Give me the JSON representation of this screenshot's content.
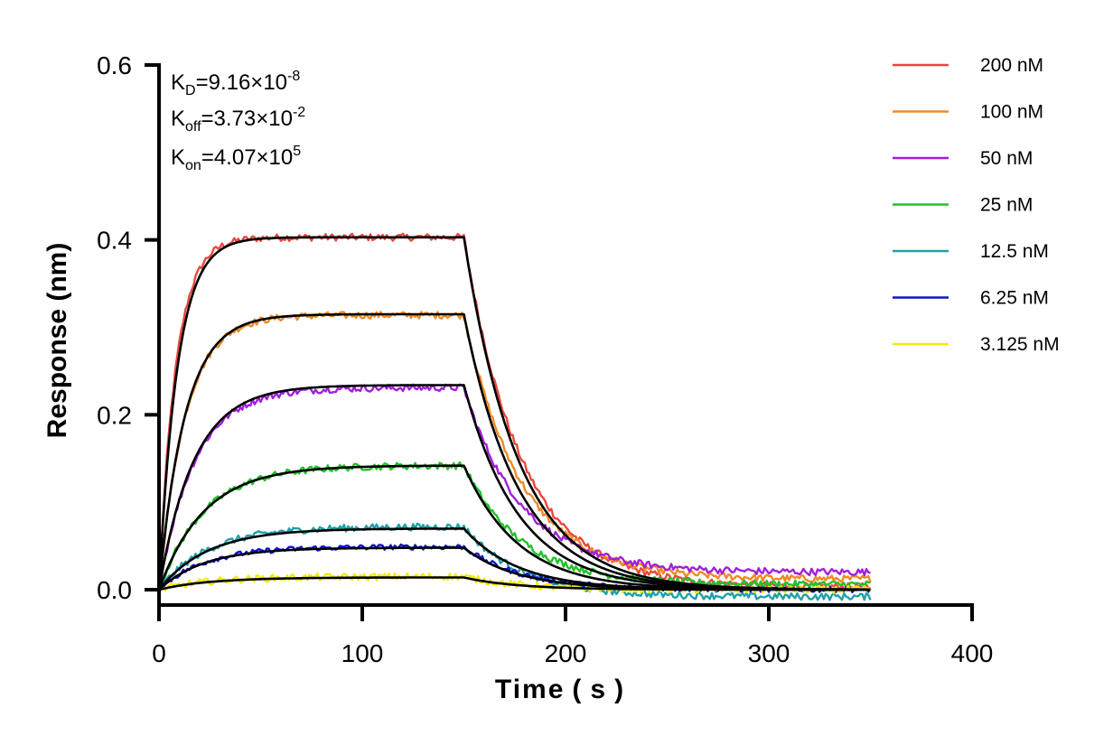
{
  "chart_data": {
    "type": "line",
    "title": "",
    "xlabel": "Time ( s )",
    "ylabel": "Response (nm)",
    "xlim": [
      0,
      400
    ],
    "ylim": [
      0,
      0.6
    ],
    "x_ticks": [
      "0",
      "100",
      "200",
      "300",
      "400"
    ],
    "y_ticks": [
      "0.0",
      "0.2",
      "0.4",
      "0.6"
    ],
    "x_tick_values": [
      0,
      100,
      200,
      300,
      400
    ],
    "y_tick_values": [
      0,
      0.2,
      0.4,
      0.6
    ],
    "grid": false,
    "legend_position": "top-right",
    "association_end_s": 150,
    "dissociation_end_s": 350,
    "annotations": {
      "kd": {
        "label": "K",
        "sub": "D",
        "value": "=9.16×10",
        "exp": "-8"
      },
      "koff": {
        "label": "K",
        "sub": "off",
        "value": "=3.73×10",
        "exp": "-2"
      },
      "kon": {
        "label": "K",
        "sub": "on",
        "value": "=4.07×10",
        "exp": "5"
      }
    },
    "series": [
      {
        "name": "200 nM",
        "color": "#e8483f",
        "plateau": 0.403,
        "kobs": 0.12,
        "kdiss": 0.0373,
        "fit_plateau": 0.403,
        "fit_kobs": 0.11,
        "baseline": 0.003,
        "noise": 0.004
      },
      {
        "name": "100 nM",
        "color": "#f08a24",
        "plateau": 0.314,
        "kobs": 0.078,
        "kdiss": 0.0373,
        "fit_plateau": 0.315,
        "fit_kobs": 0.078,
        "baseline": 0.012,
        "noise": 0.004
      },
      {
        "name": "50 nM",
        "color": "#a020d8",
        "plateau": 0.231,
        "kobs": 0.058,
        "kdiss": 0.0373,
        "fit_plateau": 0.234,
        "fit_kobs": 0.058,
        "baseline": 0.02,
        "noise": 0.004
      },
      {
        "name": "25 nM",
        "color": "#22c22a",
        "plateau": 0.142,
        "kobs": 0.045,
        "kdiss": 0.0373,
        "fit_plateau": 0.142,
        "fit_kobs": 0.045,
        "baseline": 0.006,
        "noise": 0.004
      },
      {
        "name": "12.5 nM",
        "color": "#20a0a8",
        "plateau": 0.072,
        "kobs": 0.042,
        "kdiss": 0.0373,
        "fit_plateau": 0.07,
        "fit_kobs": 0.042,
        "baseline": -0.008,
        "noise": 0.004
      },
      {
        "name": "6.25 nM",
        "color": "#1010d0",
        "plateau": 0.049,
        "kobs": 0.045,
        "kdiss": 0.0373,
        "fit_plateau": 0.048,
        "fit_kobs": 0.045,
        "baseline": 0.0,
        "noise": 0.003
      },
      {
        "name": "3.125 nM",
        "color": "#f2ea10",
        "plateau": 0.015,
        "kobs": 0.04,
        "kdiss": 0.0373,
        "fit_plateau": 0.014,
        "fit_kobs": 0.04,
        "baseline": 0.0,
        "noise": 0.004
      }
    ]
  }
}
